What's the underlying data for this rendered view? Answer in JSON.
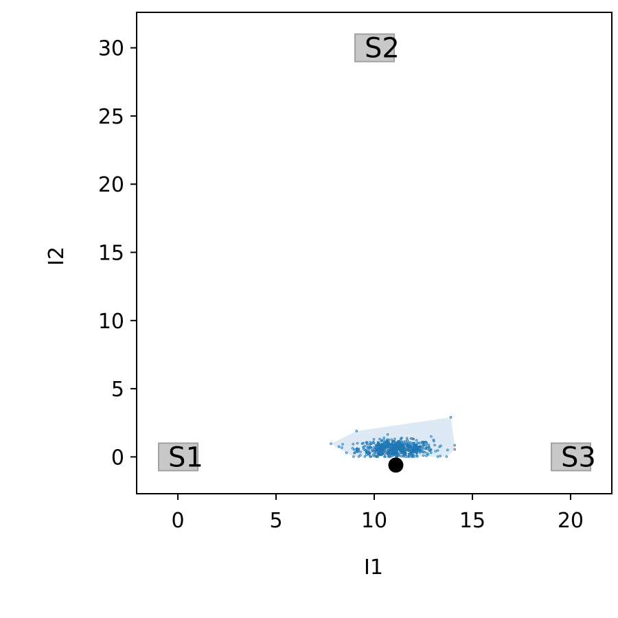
{
  "chart_data": {
    "type": "scatter",
    "title": "",
    "xlabel": "I1",
    "ylabel": "I2",
    "xlim": [
      -2.1,
      22.1
    ],
    "ylim": [
      -2.7,
      32.6
    ],
    "xticks": [
      0,
      5,
      10,
      15,
      20
    ],
    "yticks": [
      0,
      5,
      10,
      15,
      20,
      25,
      30
    ],
    "grid": false,
    "colors": {
      "scatter": "#1f77b4",
      "hull": "#c6dbef",
      "point": "#000000",
      "station_fill": "#c8c8c8",
      "station_edge": "#a0a0a0"
    },
    "stations": [
      {
        "label": "S1",
        "x": 0,
        "y": 0
      },
      {
        "label": "S2",
        "x": 10,
        "y": 30
      },
      {
        "label": "S3",
        "x": 20,
        "y": 0
      }
    ],
    "true_point": {
      "x": 11.1,
      "y": -0.6
    },
    "scatter_cloud": {
      "count": 600,
      "center_x": 11.1,
      "center_y": 0.6,
      "outliers": [
        {
          "x": 13.9,
          "y": 2.9
        },
        {
          "x": 8.2,
          "y": 0.75
        },
        {
          "x": 9.1,
          "y": 1.9
        },
        {
          "x": 14.1,
          "y": 0.55
        },
        {
          "x": 12.9,
          "y": 1.5
        }
      ]
    }
  }
}
